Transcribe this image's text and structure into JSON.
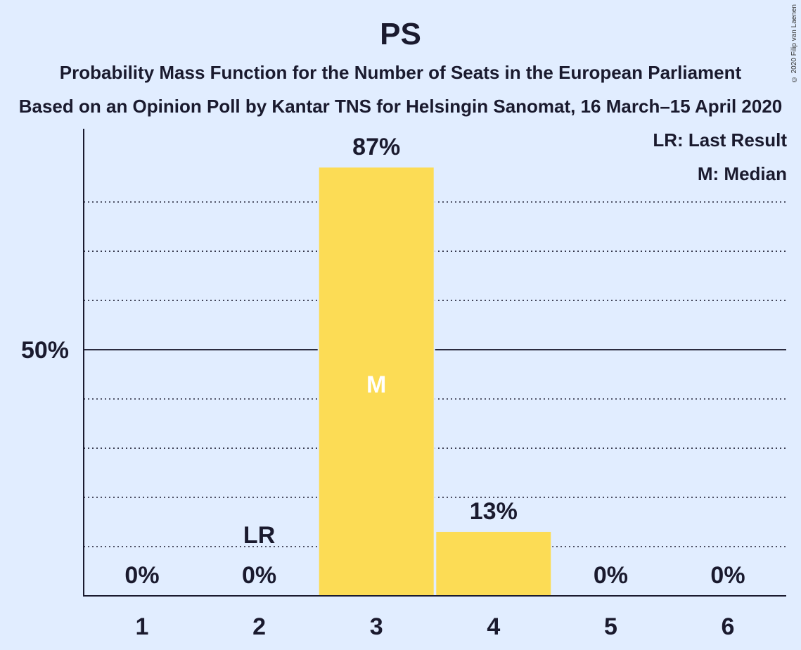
{
  "title": "PS",
  "subtitle1": "Probability Mass Function for the Number of Seats in the European Parliament",
  "subtitle2": "Based on an Opinion Poll by Kantar TNS for Helsingin Sanomat, 16 March–15 April 2020",
  "copyright": "© 2020 Filip van Laenen",
  "legend": {
    "last_result": "LR: Last Result",
    "median": "M: Median"
  },
  "colors": {
    "background": "#e1edff",
    "bar": "#fcdc55",
    "text": "#1a1a2e",
    "median_marker": "#ffffff"
  },
  "chart_data": {
    "type": "bar",
    "categories": [
      "1",
      "2",
      "3",
      "4",
      "5",
      "6"
    ],
    "values": [
      0,
      0,
      87,
      13,
      0,
      0
    ],
    "value_labels": [
      "0%",
      "0%",
      "87%",
      "13%",
      "0%",
      "0%"
    ],
    "ylim": [
      0,
      95
    ],
    "ytick_labels": [
      {
        "value": 50,
        "label": "50%"
      }
    ],
    "minor_gridlines": [
      10,
      20,
      30,
      40,
      60,
      70,
      80
    ],
    "grid": true,
    "last_result": {
      "category": "2",
      "label": "LR"
    },
    "median": {
      "category": "3",
      "label": "M"
    }
  }
}
